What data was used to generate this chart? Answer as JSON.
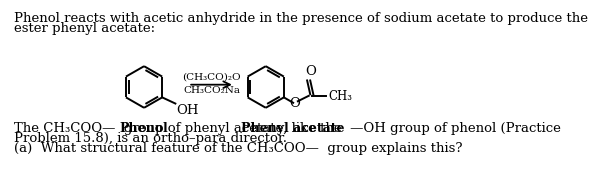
{
  "bg_color": "#ffffff",
  "text_color": "#000000",
  "title_line1": "Phenol reacts with acetic anhydride in the presence of sodium acetate to produce the",
  "title_line2": "ester phenyl acetate:",
  "reagent_line1": "(CH₃CO)₂O",
  "reagent_line2": "CH₃CO₂Na",
  "label_phenol": "Phenol",
  "label_phenyl_acetate": "Phenyl acetate",
  "body_line1": "The CH₃COO—  group of phenyl acetate, like the  —OH group of phenol (Practice",
  "body_line2": "Problem 15.8), is an ortho–para director.",
  "question_line": "(a)  What structural feature of the CH₃COO—  group explains this?",
  "font_size": 9.5,
  "font_size_reagent": 7.5,
  "font_size_label": 9.0
}
